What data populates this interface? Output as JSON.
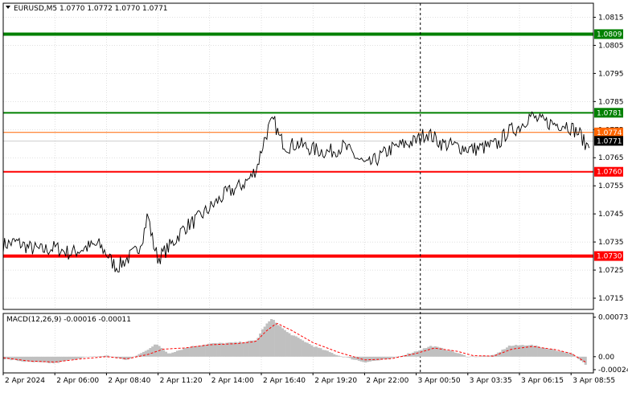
{
  "header": {
    "main_title": "EURUSD,M5  1.0770 1.0772 1.0770 1.0771",
    "macd_title": "MACD(12,26,9) -0.00016 -0.00011"
  },
  "colors": {
    "background": "#ffffff",
    "grid": "#c0c0c0",
    "axis": "#000000",
    "price_line": "#000000",
    "green_level": "#008000",
    "red_level": "#ff0000",
    "orange_level": "#ff6600",
    "current_price": "#000000",
    "macd_hist": "#c0c0c0",
    "macd_signal": "#ff0000"
  },
  "chart_data": [
    {
      "type": "line",
      "title": "EURUSD,M5  1.0770 1.0772 1.0770 1.0771",
      "ylim": [
        1.0711,
        1.082
      ],
      "y_ticks": [
        "1.0815",
        "1.0805",
        "1.0795",
        "1.0785",
        "1.0775",
        "1.0765",
        "1.0755",
        "1.0745",
        "1.0735",
        "1.0725",
        "1.0715"
      ],
      "x_ticks": [
        "2 Apr 2024",
        "2 Apr 06:00",
        "2 Apr 08:40",
        "2 Apr 11:20",
        "2 Apr 14:00",
        "2 Apr 16:40",
        "2 Apr 19:20",
        "2 Apr 22:00",
        "3 Apr 00:50",
        "3 Apr 03:35",
        "3 Apr 06:15",
        "3 Apr 08:55"
      ],
      "levels": [
        {
          "value": 1.0809,
          "label": "1.0809",
          "color": "#008000",
          "thick": true
        },
        {
          "value": 1.0781,
          "label": "1.0781",
          "color": "#008000",
          "thick": false
        },
        {
          "value": 1.0774,
          "label": "1.0774",
          "color": "#ff6600",
          "thick": false
        },
        {
          "value": 1.0771,
          "label": "1.0771",
          "color": "#000000",
          "thick": false
        },
        {
          "value": 1.076,
          "label": "1.0760",
          "color": "#ff0000",
          "thick": false
        },
        {
          "value": 1.073,
          "label": "1.0730",
          "color": "#ff0000",
          "thick": true
        }
      ],
      "vertical_marker_index": 8.08,
      "price_knots": [
        [
          0,
          1.0734
        ],
        [
          0.25,
          1.0735
        ],
        [
          0.5,
          1.0733
        ],
        [
          0.75,
          1.0732
        ],
        [
          1.0,
          1.0733
        ],
        [
          1.3,
          1.0731
        ],
        [
          1.6,
          1.0733
        ],
        [
          1.85,
          1.0734
        ],
        [
          2.0,
          1.0731
        ],
        [
          2.1,
          1.0728
        ],
        [
          2.2,
          1.0726
        ],
        [
          2.4,
          1.0729
        ],
        [
          2.6,
          1.0732
        ],
        [
          2.72,
          1.0738
        ],
        [
          2.8,
          1.0745
        ],
        [
          2.9,
          1.0735
        ],
        [
          3.0,
          1.0729
        ],
        [
          3.15,
          1.0732
        ],
        [
          3.3,
          1.0735
        ],
        [
          3.5,
          1.074
        ],
        [
          3.75,
          1.0743
        ],
        [
          4.0,
          1.0747
        ],
        [
          4.3,
          1.0752
        ],
        [
          4.6,
          1.0755
        ],
        [
          4.8,
          1.0758
        ],
        [
          4.92,
          1.0762
        ],
        [
          5.05,
          1.0771
        ],
        [
          5.15,
          1.0776
        ],
        [
          5.25,
          1.0778
        ],
        [
          5.35,
          1.0772
        ],
        [
          5.5,
          1.0769
        ],
        [
          5.7,
          1.077
        ],
        [
          6.0,
          1.0768
        ],
        [
          6.3,
          1.0767
        ],
        [
          6.6,
          1.0769
        ],
        [
          6.85,
          1.0765
        ],
        [
          7.05,
          1.0762
        ],
        [
          7.2,
          1.0764
        ],
        [
          7.5,
          1.0768
        ],
        [
          7.8,
          1.077
        ],
        [
          8.0,
          1.0771
        ],
        [
          8.2,
          1.0774
        ],
        [
          8.5,
          1.077
        ],
        [
          8.8,
          1.0769
        ],
        [
          9.1,
          1.0768
        ],
        [
          9.4,
          1.0769
        ],
        [
          9.6,
          1.077
        ],
        [
          9.75,
          1.0774
        ],
        [
          10.0,
          1.0776
        ],
        [
          10.2,
          1.078
        ],
        [
          10.4,
          1.0778
        ],
        [
          10.7,
          1.0777
        ],
        [
          10.9,
          1.0777
        ],
        [
          11.05,
          1.0775
        ],
        [
          11.2,
          1.0773
        ],
        [
          11.28,
          1.0769
        ],
        [
          11.35,
          1.0771
        ]
      ]
    },
    {
      "type": "area",
      "title": "MACD(12,26,9) -0.00016 -0.00011",
      "ylim": [
        -0.0003,
        0.0008
      ],
      "y_ticks": [
        "0.00073",
        "0.00",
        "-0.00024"
      ],
      "hist_knots": [
        [
          0,
          -4e-05
        ],
        [
          0.5,
          -0.0001
        ],
        [
          1.0,
          -0.00012
        ],
        [
          1.5,
          -2e-05
        ],
        [
          2.0,
          2e-05
        ],
        [
          2.4,
          -6e-05
        ],
        [
          2.75,
          0.0001
        ],
        [
          2.95,
          0.00024
        ],
        [
          3.2,
          6e-05
        ],
        [
          3.6,
          0.00018
        ],
        [
          4.0,
          0.00024
        ],
        [
          4.5,
          0.00026
        ],
        [
          4.9,
          0.0003
        ],
        [
          5.05,
          0.00055
        ],
        [
          5.2,
          0.0007
        ],
        [
          5.5,
          0.00045
        ],
        [
          6.0,
          0.0002
        ],
        [
          6.5,
          2e-05
        ],
        [
          7.0,
          -0.0001
        ],
        [
          7.5,
          -4e-05
        ],
        [
          8.0,
          0.0001
        ],
        [
          8.3,
          0.0002
        ],
        [
          8.7,
          0.0001
        ],
        [
          9.0,
          0.0
        ],
        [
          9.5,
          2e-05
        ],
        [
          9.8,
          0.0002
        ],
        [
          10.2,
          0.00022
        ],
        [
          10.6,
          0.00014
        ],
        [
          11.0,
          6e-05
        ],
        [
          11.3,
          -0.00016
        ]
      ],
      "signal_knots": [
        [
          0,
          -2e-05
        ],
        [
          0.5,
          -8e-05
        ],
        [
          1.0,
          -0.0001
        ],
        [
          1.5,
          -4e-05
        ],
        [
          2.0,
          0.0
        ],
        [
          2.4,
          -4e-05
        ],
        [
          2.8,
          4e-05
        ],
        [
          3.1,
          0.00014
        ],
        [
          3.5,
          0.00016
        ],
        [
          4.0,
          0.00022
        ],
        [
          4.5,
          0.00024
        ],
        [
          4.9,
          0.00028
        ],
        [
          5.1,
          0.00048
        ],
        [
          5.3,
          0.00062
        ],
        [
          5.6,
          0.00048
        ],
        [
          6.0,
          0.00026
        ],
        [
          6.5,
          8e-05
        ],
        [
          7.0,
          -6e-05
        ],
        [
          7.5,
          -4e-05
        ],
        [
          8.0,
          6e-05
        ],
        [
          8.35,
          0.00016
        ],
        [
          8.8,
          0.0001
        ],
        [
          9.1,
          2e-05
        ],
        [
          9.5,
          1e-05
        ],
        [
          9.85,
          0.00014
        ],
        [
          10.25,
          0.00019
        ],
        [
          10.7,
          0.00013
        ],
        [
          11.0,
          6e-05
        ],
        [
          11.3,
          -0.00011
        ]
      ]
    }
  ]
}
